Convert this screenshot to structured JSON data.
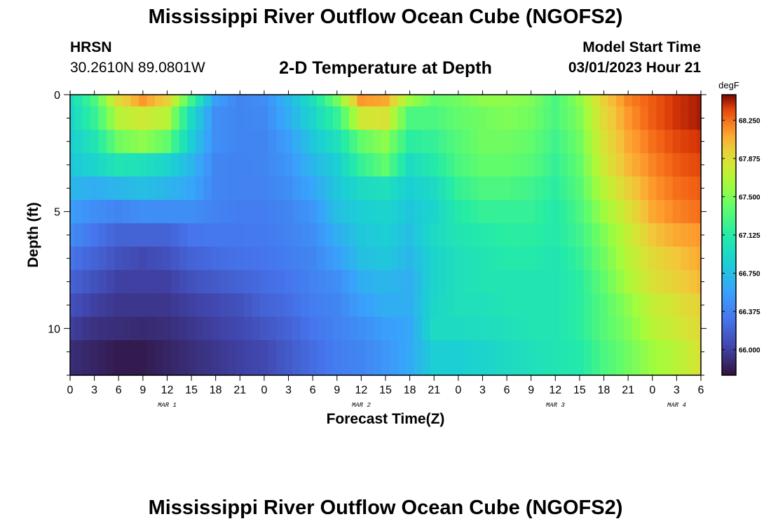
{
  "header": {
    "title": "Mississippi River Outflow Ocean Cube (NGOFS2)",
    "station": "HRSN",
    "coords": "30.2610N  89.0801W",
    "plot_title": "2-D Temperature at Depth",
    "model_start_label": "Model Start Time",
    "model_start_value": "03/01/2023 Hour 21"
  },
  "footer": {
    "title": "Mississippi River Outflow Ocean Cube (NGOFS2)"
  },
  "chart_data": {
    "type": "heatmap",
    "xlabel": "Forecast Time(Z)",
    "ylabel": "Depth (ft)",
    "x_range_hours": [
      0,
      78
    ],
    "y_range": [
      0,
      12
    ],
    "x_tick_labels": [
      "0",
      "3",
      "6",
      "9",
      "12",
      "15",
      "18",
      "21",
      "0",
      "3",
      "6",
      "9",
      "12",
      "15",
      "18",
      "21",
      "0",
      "3",
      "6",
      "9",
      "12",
      "15",
      "18",
      "21",
      "0",
      "3",
      "6"
    ],
    "y_tick_labels": [
      "0",
      "5",
      "10"
    ],
    "date_labels": [
      {
        "hour": 12,
        "label": "MAR 1"
      },
      {
        "hour": 36,
        "label": "MAR 2"
      },
      {
        "hour": 60,
        "label": "MAR 3"
      },
      {
        "hour": 75,
        "label": "MAR 4"
      }
    ],
    "colorbar": {
      "unit": "degF",
      "min": 65.75,
      "max": 68.5,
      "tick_labels": [
        "68.250",
        "67.875",
        "67.500",
        "67.125",
        "66.750",
        "66.375",
        "66.000"
      ],
      "tick_values": [
        68.25,
        67.875,
        67.5,
        67.125,
        66.75,
        66.375,
        66.0
      ]
    },
    "depth_levels": 12,
    "time_steps": 79,
    "keyframes": [
      {
        "hour": 0,
        "values": [
          66.95,
          66.9,
          66.85,
          66.8,
          66.7,
          66.55,
          66.45,
          66.3,
          66.2,
          66.1,
          66.0,
          65.9
        ]
      },
      {
        "hour": 3,
        "values": [
          67.3,
          67.2,
          67.05,
          66.9,
          66.65,
          66.45,
          66.3,
          66.2,
          66.1,
          66.0,
          65.92,
          65.85
        ]
      },
      {
        "hour": 6,
        "values": [
          67.9,
          67.7,
          67.45,
          67.05,
          66.7,
          66.4,
          66.2,
          66.1,
          66.0,
          65.95,
          65.9,
          65.8
        ]
      },
      {
        "hour": 9,
        "values": [
          68.15,
          67.8,
          67.55,
          67.0,
          66.75,
          66.45,
          66.2,
          66.05,
          66.0,
          65.95,
          65.88,
          65.8
        ]
      },
      {
        "hour": 12,
        "values": [
          67.95,
          67.7,
          67.4,
          66.9,
          66.7,
          66.45,
          66.2,
          66.1,
          66.0,
          65.95,
          65.9,
          65.85
        ]
      },
      {
        "hour": 15,
        "values": [
          67.25,
          66.95,
          66.85,
          66.7,
          66.6,
          66.45,
          66.3,
          66.2,
          66.1,
          66.0,
          65.95,
          65.9
        ]
      },
      {
        "hour": 18,
        "values": [
          66.55,
          66.45,
          66.45,
          66.4,
          66.4,
          66.38,
          66.32,
          66.25,
          66.15,
          66.05,
          66.0,
          65.95
        ]
      },
      {
        "hour": 21,
        "values": [
          66.4,
          66.4,
          66.4,
          66.38,
          66.38,
          66.35,
          66.32,
          66.28,
          66.2,
          66.1,
          66.05,
          66.0
        ]
      },
      {
        "hour": 24,
        "values": [
          66.45,
          66.42,
          66.4,
          66.4,
          66.38,
          66.35,
          66.33,
          66.3,
          66.25,
          66.2,
          66.12,
          66.05
        ]
      },
      {
        "hour": 27,
        "values": [
          66.7,
          66.65,
          66.55,
          66.5,
          66.45,
          66.4,
          66.38,
          66.35,
          66.3,
          66.25,
          66.2,
          66.15
        ]
      },
      {
        "hour": 30,
        "values": [
          67.0,
          66.9,
          66.8,
          66.7,
          66.6,
          66.5,
          66.45,
          66.4,
          66.38,
          66.35,
          66.3,
          66.25
        ]
      },
      {
        "hour": 33,
        "values": [
          67.45,
          67.2,
          67.0,
          66.85,
          66.8,
          66.75,
          66.65,
          66.55,
          66.45,
          66.4,
          66.38,
          66.35
        ]
      },
      {
        "hour": 36,
        "values": [
          68.15,
          67.8,
          67.4,
          67.2,
          66.95,
          66.85,
          66.8,
          66.75,
          66.65,
          66.55,
          66.45,
          66.4
        ]
      },
      {
        "hour": 39,
        "values": [
          68.1,
          67.85,
          67.55,
          67.4,
          67.0,
          66.9,
          66.85,
          66.8,
          66.7,
          66.65,
          66.55,
          66.5
        ]
      },
      {
        "hour": 42,
        "values": [
          67.6,
          67.3,
          67.15,
          66.95,
          66.85,
          66.8,
          66.75,
          66.7,
          66.65,
          66.65,
          66.6,
          66.62
        ]
      },
      {
        "hour": 45,
        "values": [
          67.4,
          67.3,
          67.2,
          67.1,
          66.95,
          66.9,
          66.95,
          66.9,
          66.9,
          66.92,
          66.95,
          66.85
        ]
      },
      {
        "hour": 48,
        "values": [
          67.45,
          67.4,
          67.35,
          67.3,
          67.2,
          67.1,
          67.05,
          67.0,
          67.0,
          67.0,
          66.95,
          66.85
        ]
      },
      {
        "hour": 51,
        "values": [
          67.55,
          67.45,
          67.45,
          67.4,
          67.3,
          67.2,
          67.1,
          67.05,
          67.05,
          67.0,
          66.98,
          66.9
        ]
      },
      {
        "hour": 54,
        "values": [
          67.55,
          67.5,
          67.45,
          67.4,
          67.3,
          67.2,
          67.15,
          67.1,
          67.05,
          67.05,
          67.0,
          66.95
        ]
      },
      {
        "hour": 57,
        "values": [
          67.5,
          67.45,
          67.4,
          67.35,
          67.25,
          67.2,
          67.15,
          67.1,
          67.05,
          67.05,
          67.05,
          67.0
        ]
      },
      {
        "hour": 60,
        "values": [
          67.3,
          67.3,
          67.25,
          67.2,
          67.15,
          67.1,
          67.1,
          67.05,
          67.05,
          67.05,
          67.05,
          67.05
        ]
      },
      {
        "hour": 63,
        "values": [
          67.55,
          67.5,
          67.45,
          67.4,
          67.35,
          67.3,
          67.25,
          67.2,
          67.15,
          67.15,
          67.15,
          67.1
        ]
      },
      {
        "hour": 66,
        "values": [
          67.95,
          67.9,
          67.85,
          67.8,
          67.7,
          67.6,
          67.5,
          67.45,
          67.4,
          67.35,
          67.35,
          67.3
        ]
      },
      {
        "hour": 69,
        "values": [
          68.2,
          68.15,
          68.1,
          68.05,
          67.95,
          67.85,
          67.75,
          67.7,
          67.65,
          67.55,
          67.5,
          67.45
        ]
      },
      {
        "hour": 72,
        "values": [
          68.3,
          68.3,
          68.25,
          68.2,
          68.15,
          68.1,
          68.0,
          67.9,
          67.85,
          67.75,
          67.7,
          67.6
        ]
      },
      {
        "hour": 75,
        "values": [
          68.4,
          68.4,
          68.35,
          68.3,
          68.25,
          68.2,
          68.1,
          68.0,
          67.95,
          67.85,
          67.8,
          67.7
        ]
      },
      {
        "hour": 78,
        "values": [
          68.45,
          68.45,
          68.4,
          68.35,
          68.3,
          68.25,
          68.15,
          68.1,
          68.05,
          67.95,
          67.9,
          67.85
        ]
      }
    ]
  }
}
